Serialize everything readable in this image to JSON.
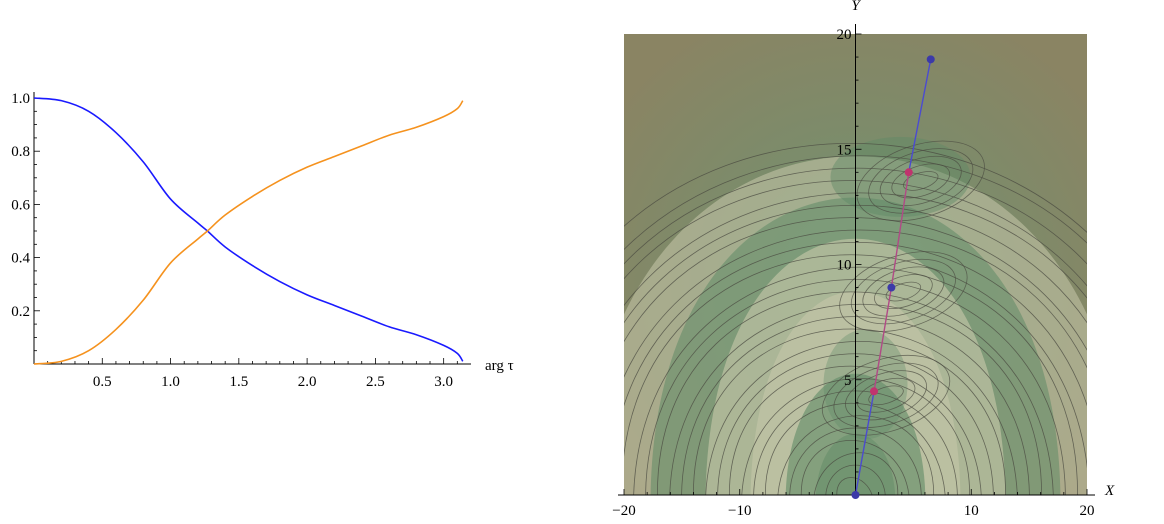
{
  "chart_data": [
    {
      "type": "line",
      "title": "",
      "xlabel": "arg τ",
      "ylabel": "",
      "xlim": [
        0,
        3.1416
      ],
      "ylim": [
        0,
        1.0
      ],
      "xticks": [
        "0.5",
        "1.0",
        "1.5",
        "2.0",
        "2.5",
        "3.0"
      ],
      "yticks": [
        "0.2",
        "0.4",
        "0.6",
        "0.8",
        "1.0"
      ],
      "grid": false,
      "colors": {
        "series_a": "#1a1aff",
        "series_b": "#f5921e"
      },
      "series": [
        {
          "x": [
            0,
            0.2,
            0.4,
            0.6,
            0.8,
            1.0,
            1.2,
            1.27,
            1.4,
            1.6,
            1.8,
            2.0,
            2.2,
            2.4,
            2.6,
            2.8,
            3.0,
            3.1,
            3.14
          ],
          "values": [
            1.0,
            0.99,
            0.95,
            0.87,
            0.76,
            0.62,
            0.53,
            0.5,
            0.44,
            0.37,
            0.31,
            0.26,
            0.22,
            0.18,
            0.14,
            0.11,
            0.07,
            0.04,
            0.01
          ]
        },
        {
          "x": [
            0,
            0.2,
            0.4,
            0.6,
            0.8,
            1.0,
            1.2,
            1.27,
            1.4,
            1.6,
            1.8,
            2.0,
            2.2,
            2.4,
            2.6,
            2.8,
            3.0,
            3.1,
            3.14
          ],
          "values": [
            0.0,
            0.01,
            0.05,
            0.13,
            0.24,
            0.38,
            0.47,
            0.5,
            0.56,
            0.63,
            0.69,
            0.74,
            0.78,
            0.82,
            0.86,
            0.89,
            0.93,
            0.96,
            0.99
          ]
        }
      ]
    },
    {
      "type": "heatmap",
      "title": "",
      "xlabel": "X",
      "ylabel": "Y",
      "xlim": [
        -20,
        20
      ],
      "ylim": [
        0,
        20
      ],
      "xticks": [
        "−20",
        "−10",
        "10",
        "20"
      ],
      "yticks": [
        "5",
        "10",
        "15",
        "20"
      ],
      "grid": false,
      "colormap": [
        "#5f8a66",
        "#7c7a5e",
        "#c9c9ac"
      ],
      "contour_line_color": "#4a4a40",
      "path": {
        "points": [
          {
            "x": 0,
            "y": 0
          },
          {
            "x": 1.6,
            "y": 4.5
          },
          {
            "x": 3.1,
            "y": 9.0
          },
          {
            "x": 4.6,
            "y": 14.0
          },
          {
            "x": 6.5,
            "y": 18.9
          }
        ],
        "marker_colors": [
          "#3c3aa8",
          "#c0346e",
          "#3c3aa8",
          "#c0346e",
          "#3c3aa8"
        ],
        "segment_colors": [
          "#4b4bd0",
          "#b04a86",
          "#b04a86",
          "#4b4bd0"
        ]
      }
    }
  ]
}
